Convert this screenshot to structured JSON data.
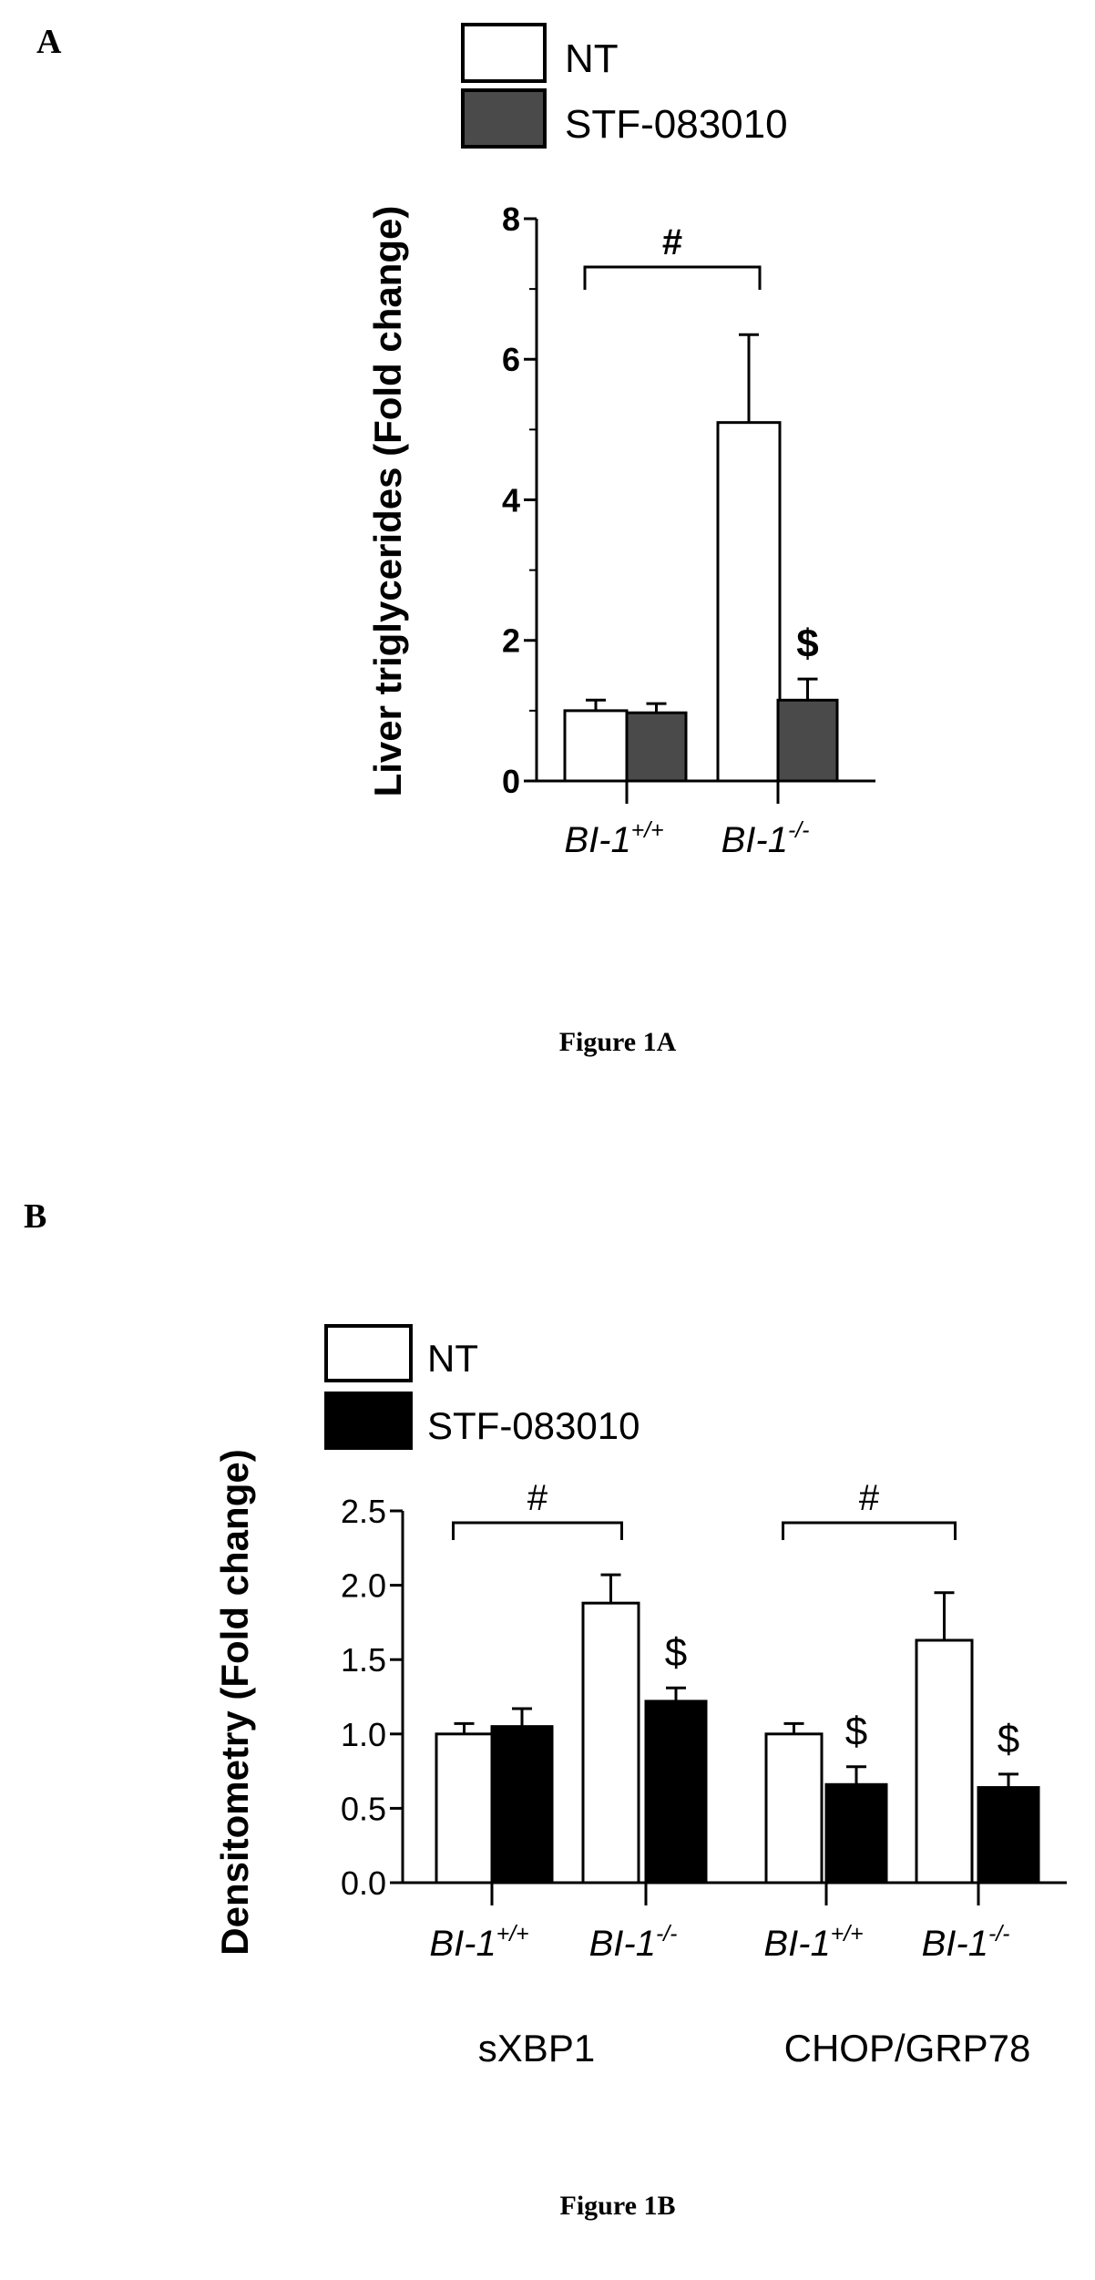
{
  "panels": [
    {
      "letter": "A",
      "caption": "Figure 1A"
    },
    {
      "letter": "B",
      "caption": "Figure 1B"
    }
  ],
  "chart_data": [
    {
      "type": "bar",
      "ylabel": "Liver triglycerides (Fold change)",
      "ylim": [
        0,
        8
      ],
      "yticks": [
        "0",
        "2",
        "4",
        "6",
        "8"
      ],
      "ytick_values": [
        0,
        2,
        4,
        6,
        8
      ],
      "legend": {
        "placement": "top",
        "entries": [
          "NT",
          "STF-083010"
        ]
      },
      "colors": {
        "NT": "#ffffff",
        "STF-083010": "#4a4a4a"
      },
      "groups": [
        ""
      ],
      "categories": [
        {
          "base": "BI-1",
          "sup": "+/+"
        },
        {
          "base": "BI-1",
          "sup": "-/-"
        }
      ],
      "series": [
        {
          "name": "NT",
          "values": [
            1.0,
            5.1
          ],
          "errors": [
            0.15,
            1.25
          ]
        },
        {
          "name": "STF-083010",
          "values": [
            0.97,
            1.15
          ],
          "errors": [
            0.13,
            0.3
          ]
        }
      ],
      "annotations": {
        "brackets": [
          {
            "label": "#",
            "from": "BI-1+/+ NT",
            "to": "BI-1-/- NT"
          }
        ],
        "markers": [
          {
            "label": "$",
            "bar": "BI-1-/- STF-083010"
          }
        ]
      }
    },
    {
      "type": "bar",
      "ylabel": "Densitometry (Fold change)",
      "ylim": [
        0,
        2.5
      ],
      "yticks": [
        "0.0",
        "0.5",
        "1.0",
        "1.5",
        "2.0",
        "2.5"
      ],
      "ytick_values": [
        0,
        0.5,
        1.0,
        1.5,
        2.0,
        2.5
      ],
      "legend": {
        "placement": "top",
        "entries": [
          "NT",
          "STF-083010"
        ]
      },
      "colors": {
        "NT": "#ffffff",
        "STF-083010": "#000000"
      },
      "groups": [
        "sXBP1",
        "CHOP/GRP78"
      ],
      "categories": [
        {
          "base": "BI-1",
          "sup": "+/+"
        },
        {
          "base": "BI-1",
          "sup": "-/-"
        },
        {
          "base": "BI-1",
          "sup": "+/+"
        },
        {
          "base": "BI-1",
          "sup": "-/-"
        }
      ],
      "series": [
        {
          "name": "NT",
          "values": [
            1.0,
            1.88,
            1.0,
            1.63
          ],
          "errors": [
            0.07,
            0.19,
            0.07,
            0.32
          ]
        },
        {
          "name": "STF-083010",
          "values": [
            1.05,
            1.22,
            0.66,
            0.64
          ],
          "errors": [
            0.12,
            0.09,
            0.12,
            0.09
          ]
        }
      ],
      "annotations": {
        "brackets": [
          {
            "label": "#",
            "from": "sXBP1 BI-1+/+ NT",
            "to": "sXBP1 BI-1-/- NT"
          },
          {
            "label": "#",
            "from": "CHOP/GRP78 BI-1+/+ NT",
            "to": "CHOP/GRP78 BI-1-/- NT"
          }
        ],
        "markers": [
          {
            "label": "$",
            "bar": "sXBP1 BI-1-/- STF-083010"
          },
          {
            "label": "$",
            "bar": "CHOP/GRP78 BI-1+/+ STF-083010"
          },
          {
            "label": "$",
            "bar": "CHOP/GRP78 BI-1-/- STF-083010"
          }
        ]
      }
    }
  ]
}
